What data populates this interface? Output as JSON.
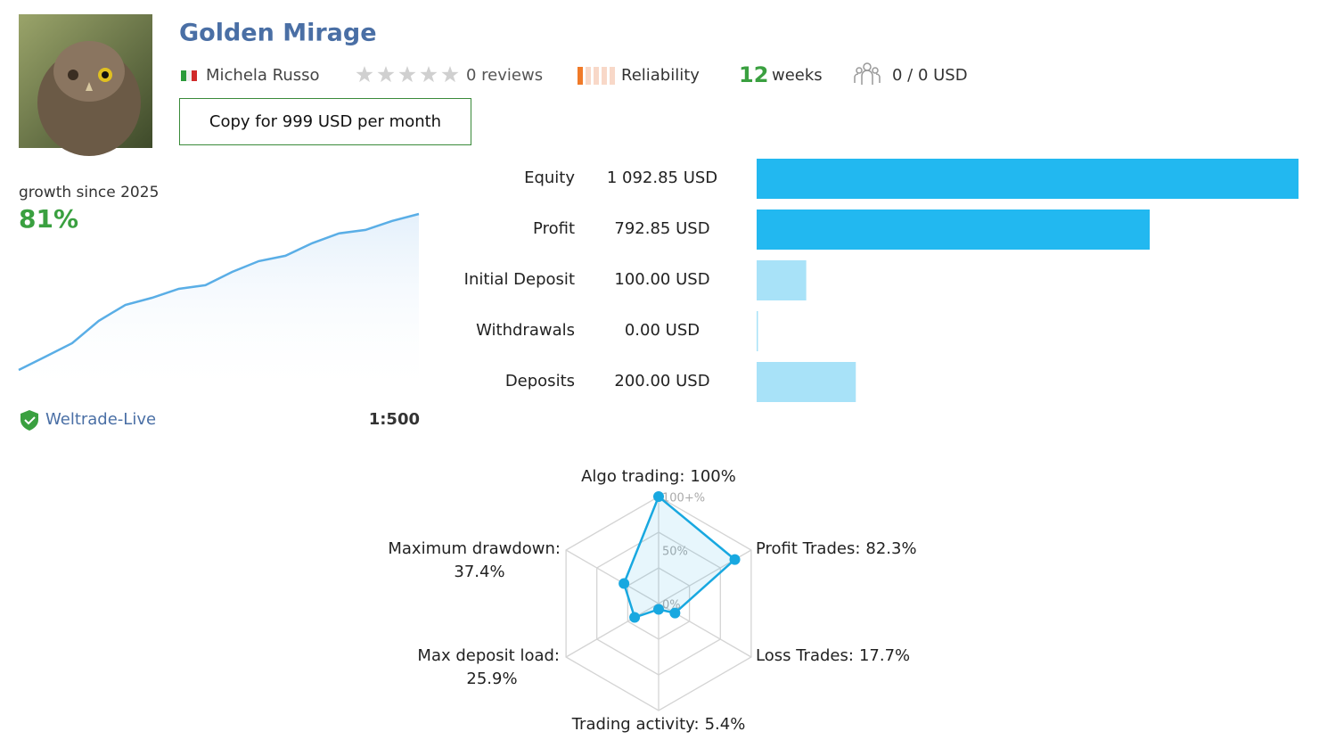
{
  "header": {
    "title": "Golden Mirage",
    "author": "Michela Russo",
    "reviews": "0 reviews",
    "reliability": "Reliability",
    "weeks_count": "12",
    "weeks_unit": "weeks",
    "subscribers": "0 / 0 USD",
    "button": "Copy for 999 USD per month"
  },
  "growth": {
    "caption": "growth since 2025",
    "value": "81%",
    "color": "#5aaee6",
    "values": [
      0,
      6.9,
      13.9,
      25.5,
      33.8,
      37.5,
      42.1,
      44,
      50.9,
      56.5,
      59.3,
      65.8,
      70.9,
      72.7,
      77.4,
      81
    ],
    "server": "Weltrade-Live",
    "leverage": "1:500"
  },
  "balance": {
    "type": "bar",
    "rows": [
      {
        "label": "Equity",
        "value": 1092.85,
        "value_label": "1 092.85 USD",
        "color": "#22b8f0"
      },
      {
        "label": "Profit",
        "value": 792.85,
        "value_label": "792.85 USD",
        "color": "#22b8f0"
      },
      {
        "label": "Initial Deposit",
        "value": 100,
        "value_label": "100.00 USD",
        "color": "#a8e2f8"
      },
      {
        "label": "Withdrawals",
        "value": 0,
        "value_label": "0.00 USD",
        "color": "#a8e2f8"
      },
      {
        "label": "Deposits",
        "value": 200,
        "value_label": "200.00 USD",
        "color": "#a8e2f8"
      }
    ]
  },
  "radar": {
    "type": "radar",
    "color": "#18a8e0",
    "ticks": [
      {
        "value": 0,
        "label": "0%"
      },
      {
        "value": 50,
        "label": "50%"
      },
      {
        "value": 100,
        "label": "100+%"
      }
    ],
    "axes": [
      {
        "label": "Algo trading:",
        "value": 100,
        "value_label": "100%"
      },
      {
        "label": "Profit Trades:",
        "value": 82.3,
        "value_label": "82.3%"
      },
      {
        "label": "Loss Trades:",
        "value": 17.7,
        "value_label": "17.7%"
      },
      {
        "label": "Trading activity:",
        "value": 5.4,
        "value_label": "5.4%"
      },
      {
        "label": "Max deposit load:",
        "value": 25.9,
        "value_label": "25.9%"
      },
      {
        "label": "Maximum drawdown:",
        "value": 37.4,
        "value_label": "37.4%"
      }
    ]
  }
}
